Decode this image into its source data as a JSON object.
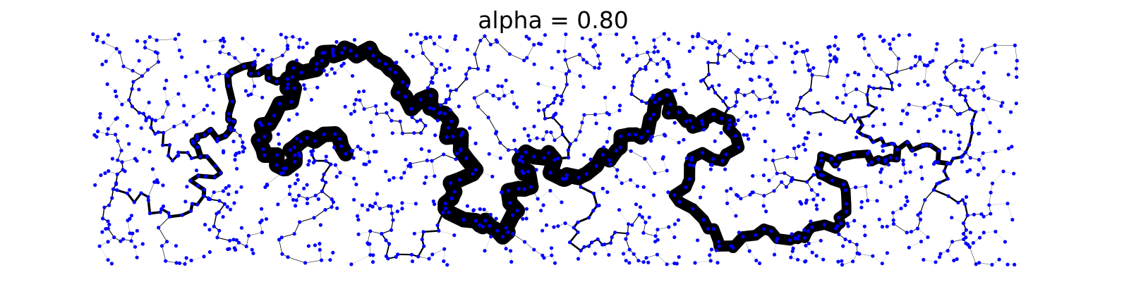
{
  "figure": {
    "title": "alpha = 0.80"
  },
  "graph": {
    "node_color": "#0000ff",
    "edge_color": "#000000",
    "node_count": 1500,
    "random_seed": 80
  }
}
